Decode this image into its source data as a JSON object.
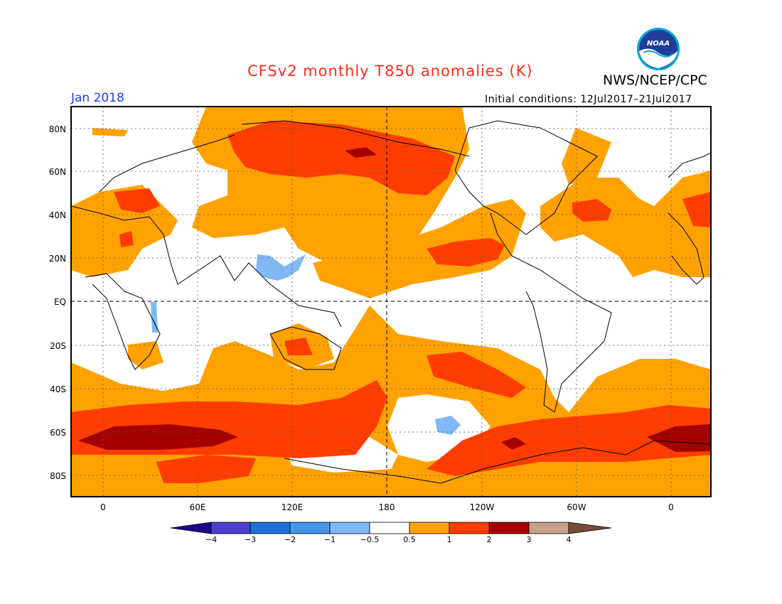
{
  "title": "CFSv2 monthly T850 anomalies (K)",
  "organization": "NWS/NCEP/CPC",
  "logo_text": "NOAA",
  "valid_month": "Jan 2018",
  "initial_conditions": "Initial conditions: 12Jul2017–21Jul2017",
  "map": {
    "variable": "T850 anomaly",
    "units": "K",
    "projection": "cylindrical equidistant",
    "lat_ticks": [
      "80N",
      "60N",
      "40N",
      "20N",
      "EQ",
      "20S",
      "40S",
      "60S",
      "80S"
    ],
    "lon_ticks": [
      "0",
      "60E",
      "120E",
      "180",
      "120W",
      "60W",
      "0"
    ],
    "reference_lines": [
      "Equator",
      "180 meridian"
    ],
    "grid": "dotted"
  },
  "colorbar": {
    "labels": [
      "−4",
      "−3",
      "−2",
      "−1",
      "−0.5",
      "0.5",
      "1",
      "2",
      "3",
      "4"
    ],
    "colors": [
      "#1a0a8a",
      "#4a3fcf",
      "#1e6fd8",
      "#4497ea",
      "#7fb8f5",
      "#ffffff",
      "#ffa200",
      "#ff3d00",
      "#a50000",
      "#c8a090",
      "#7a4a3a"
    ]
  }
}
